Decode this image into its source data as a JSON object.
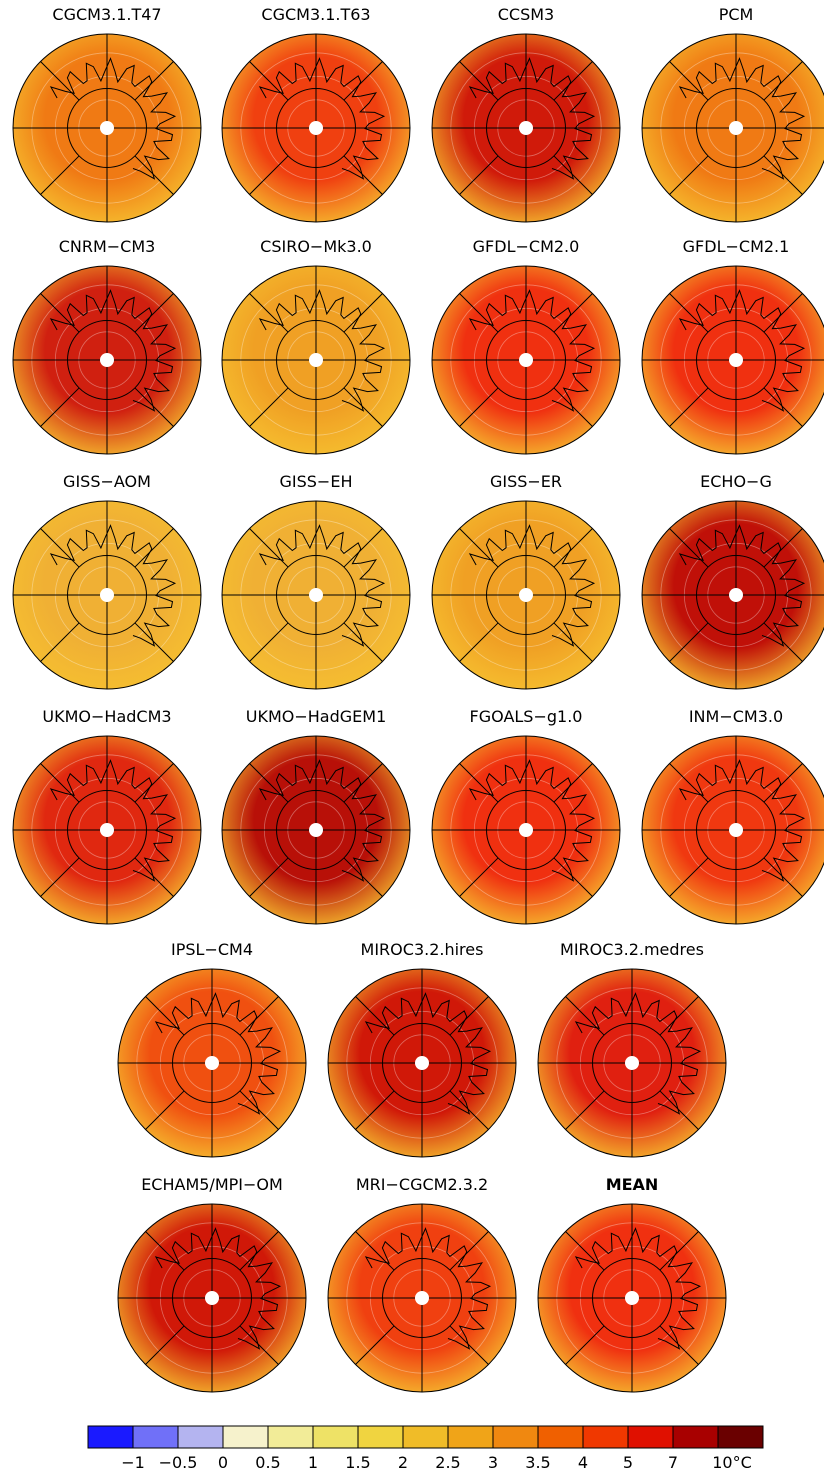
{
  "panels": [
    {
      "title": "CGCM3.1.T47",
      "color": "#f07a14"
    },
    {
      "title": "CGCM3.1.T63",
      "color": "#f04010"
    },
    {
      "title": "CCSM3",
      "color": "#d01a0a"
    },
    {
      "title": "PCM",
      "color": "#f07a14"
    },
    {
      "title": "CNRM−CM3",
      "color": "#d02010"
    },
    {
      "title": "CSIRO−Mk3.0",
      "color": "#f0a024"
    },
    {
      "title": "GFDL−CM2.0",
      "color": "#f03010"
    },
    {
      "title": "GFDL−CM2.1",
      "color": "#f03010"
    },
    {
      "title": "GISS−AOM",
      "color": "#f0b034"
    },
    {
      "title": "GISS−EH",
      "color": "#f0b034"
    },
    {
      "title": "GISS−ER",
      "color": "#f0a024"
    },
    {
      "title": "ECHO−G",
      "color": "#c01008"
    },
    {
      "title": "UKMO−HadCM3",
      "color": "#e02810"
    },
    {
      "title": "UKMO−HadGEM1",
      "color": "#b81008"
    },
    {
      "title": "FGOALS−g1.0",
      "color": "#f03010"
    },
    {
      "title": "INM−CM3.0",
      "color": "#f03810"
    },
    {
      "title": "IPSL−CM4",
      "color": "#f05010"
    },
    {
      "title": "MIROC3.2.hires",
      "color": "#d01808"
    },
    {
      "title": "MIROC3.2.medres",
      "color": "#e02010"
    },
    {
      "title": "ECHAM5/MPI−OM",
      "color": "#d01808"
    },
    {
      "title": "MRI−CGCM2.3.2",
      "color": "#f04010"
    },
    {
      "title": "MEAN",
      "color": "#f03010",
      "bold": true
    }
  ],
  "colorbar": {
    "colors": [
      "#1a1aff",
      "#7070f8",
      "#b4b4f0",
      "#f6f2cc",
      "#f2ec98",
      "#eee266",
      "#f0d440",
      "#f0bc28",
      "#f0a418",
      "#f08810",
      "#f06000",
      "#f03800",
      "#e01000",
      "#a80000",
      "#6a0000"
    ],
    "labels": [
      "−1",
      "−0.5",
      "0",
      "0.5",
      "1",
      "1.5",
      "2",
      "2.5",
      "3",
      "3.5",
      "4",
      "5",
      "7",
      "10°C"
    ]
  }
}
